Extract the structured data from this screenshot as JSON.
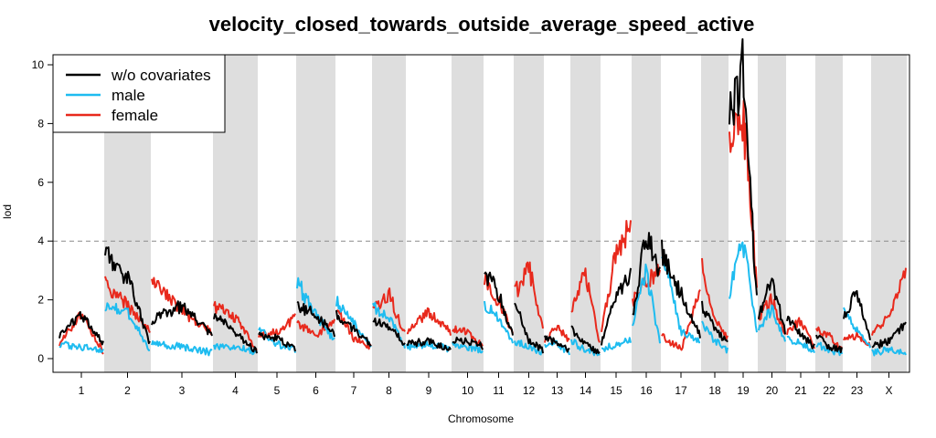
{
  "chart_data": {
    "type": "line",
    "title": "velocity_closed_towards_outside_average_speed_active",
    "xlabel": "Chromosome",
    "ylabel": "lod",
    "ylim": [
      0,
      10
    ],
    "yticks": [
      0,
      2,
      4,
      6,
      8,
      10
    ],
    "threshold": 4,
    "chromosomes": [
      {
        "label": "1",
        "shaded": false
      },
      {
        "label": "2",
        "shaded": true
      },
      {
        "label": "3",
        "shaded": false
      },
      {
        "label": "4",
        "shaded": true
      },
      {
        "label": "5",
        "shaded": false
      },
      {
        "label": "6",
        "shaded": true
      },
      {
        "label": "7",
        "shaded": false
      },
      {
        "label": "8",
        "shaded": true
      },
      {
        "label": "9",
        "shaded": false
      },
      {
        "label": "10",
        "shaded": true
      },
      {
        "label": "11",
        "shaded": false
      },
      {
        "label": "12",
        "shaded": true
      },
      {
        "label": "13",
        "shaded": false
      },
      {
        "label": "14",
        "shaded": true
      },
      {
        "label": "15",
        "shaded": false
      },
      {
        "label": "16",
        "shaded": true
      },
      {
        "label": "17",
        "shaded": false
      },
      {
        "label": "18",
        "shaded": true
      },
      {
        "label": "19",
        "shaded": false
      },
      {
        "label": "20",
        "shaded": true
      },
      {
        "label": "21",
        "shaded": false
      },
      {
        "label": "22",
        "shaded": true
      },
      {
        "label": "23",
        "shaded": false
      },
      {
        "label": "X",
        "shaded": true
      }
    ],
    "legend_position": "top-left",
    "series": [
      {
        "name": "w/o covariates",
        "color": "#000000",
        "values": [
          [
            0.8,
            1.5,
            0.5
          ],
          [
            3.6,
            2.8,
            0.5
          ],
          [
            1.3,
            1.8,
            0.8
          ],
          [
            1.5,
            0.9,
            0.2
          ],
          [
            0.8,
            0.7,
            0.3
          ],
          [
            1.8,
            1.5,
            0.8
          ],
          [
            1.5,
            1.0,
            0.5
          ],
          [
            1.3,
            1.1,
            0.5
          ],
          [
            0.5,
            0.6,
            0.3
          ],
          [
            0.6,
            0.6,
            0.4
          ],
          [
            3.0,
            2.2,
            0.8
          ],
          [
            2.1,
            0.6,
            0.3
          ],
          [
            0.8,
            0.5,
            0.3
          ],
          [
            1.0,
            0.5,
            0.2
          ],
          [
            0.5,
            2.2,
            2.8
          ],
          [
            1.4,
            4.2,
            3.0
          ],
          [
            3.6,
            2.2,
            0.8
          ],
          [
            1.8,
            1.0,
            0.5
          ],
          [
            8.0,
            9.8,
            2.0
          ],
          [
            1.5,
            2.7,
            0.9
          ],
          [
            1.4,
            0.8,
            0.4
          ],
          [
            0.8,
            0.4,
            0.3
          ],
          [
            1.5,
            2.2,
            0.6
          ],
          [
            0.4,
            0.6,
            1.2
          ]
        ]
      },
      {
        "name": "male",
        "color": "#1ebcf0",
        "values": [
          [
            0.5,
            0.4,
            0.3
          ],
          [
            1.8,
            1.6,
            0.3
          ],
          [
            0.5,
            0.4,
            0.2
          ],
          [
            0.4,
            0.4,
            0.2
          ],
          [
            1.0,
            0.5,
            0.3
          ],
          [
            2.6,
            1.5,
            0.6
          ],
          [
            2.0,
            1.2,
            0.4
          ],
          [
            1.8,
            1.4,
            0.4
          ],
          [
            0.4,
            0.5,
            0.3
          ],
          [
            0.5,
            0.4,
            0.3
          ],
          [
            1.8,
            1.4,
            0.5
          ],
          [
            0.6,
            0.4,
            0.2
          ],
          [
            0.4,
            0.5,
            0.2
          ],
          [
            0.6,
            0.3,
            0.2
          ],
          [
            0.3,
            0.5,
            0.6
          ],
          [
            1.2,
            3.0,
            0.5
          ],
          [
            3.7,
            0.9,
            0.6
          ],
          [
            1.2,
            0.6,
            0.3
          ],
          [
            2.2,
            4.0,
            1.0
          ],
          [
            1.0,
            1.7,
            0.6
          ],
          [
            0.7,
            0.5,
            0.3
          ],
          [
            0.5,
            0.3,
            0.2
          ],
          [
            1.6,
            1.0,
            0.4
          ],
          [
            0.2,
            0.3,
            0.2
          ]
        ]
      },
      {
        "name": "female",
        "color": "#e8291c",
        "values": [
          [
            0.5,
            1.5,
            0.2
          ],
          [
            2.6,
            1.8,
            1.0
          ],
          [
            2.6,
            1.6,
            0.9
          ],
          [
            1.8,
            1.4,
            0.3
          ],
          [
            0.8,
            0.9,
            1.4
          ],
          [
            1.2,
            0.8,
            1.3
          ],
          [
            1.7,
            0.7,
            0.4
          ],
          [
            1.6,
            2.2,
            0.8
          ],
          [
            0.9,
            1.6,
            0.9
          ],
          [
            1.0,
            0.9,
            0.4
          ],
          [
            2.6,
            2.0,
            0.8
          ],
          [
            2.2,
            3.1,
            1.0
          ],
          [
            0.6,
            1.1,
            0.6
          ],
          [
            1.6,
            2.9,
            0.5
          ],
          [
            1.0,
            3.6,
            4.6
          ],
          [
            2.0,
            2.6,
            3.0
          ],
          [
            0.8,
            0.3,
            2.3
          ],
          [
            3.3,
            1.3,
            0.7
          ],
          [
            7.0,
            8.3,
            2.5
          ],
          [
            1.4,
            2.0,
            0.8
          ],
          [
            0.9,
            1.3,
            0.4
          ],
          [
            1.0,
            0.8,
            0.3
          ],
          [
            0.6,
            0.8,
            0.5
          ],
          [
            0.8,
            1.5,
            2.9
          ]
        ]
      }
    ]
  }
}
